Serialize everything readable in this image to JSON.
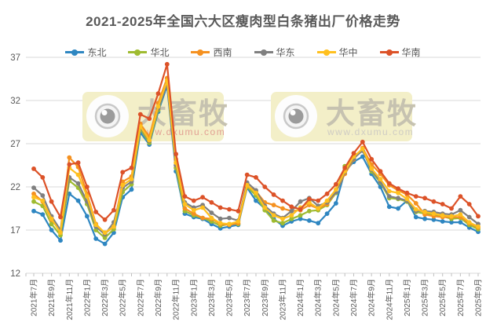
{
  "title": "2021-2025年全国六大区瘦肉型白条猪出厂价格走势",
  "watermark": {
    "brand": "大畜牧",
    "url": "www.dxumu.com"
  },
  "y_axis": {
    "ticks": [
      12,
      17,
      22,
      27,
      32,
      37
    ],
    "min": 12,
    "max": 37
  },
  "x_axis": {
    "labels": [
      "2021年7月",
      "2021年9月",
      "2021年11月",
      "2022年1月",
      "2022年3月",
      "2022年5月",
      "2022年7月",
      "2022年9月",
      "2022年11月",
      "2023年1月",
      "2023年3月",
      "2023年5月",
      "2023年7月",
      "2023年9月",
      "2023年11月",
      "2024年1月",
      "2024年3月",
      "2024年5月",
      "2024年7月",
      "2024年9月",
      "2024年11月",
      "2025年1月",
      "2025年3月",
      "2025年5月",
      "2025年7月",
      "2025年9月"
    ]
  },
  "chart_data": {
    "type": "line",
    "title": "2021-2025年全国六大区瘦肉型白条猪出厂价格走势",
    "xlabel": "",
    "ylabel": "",
    "ylim": [
      12,
      37
    ],
    "grid": "horizontal",
    "legend_position": "top",
    "months": [
      "2021-07",
      "2021-08",
      "2021-09",
      "2021-10",
      "2021-11",
      "2021-12",
      "2022-01",
      "2022-02",
      "2022-03",
      "2022-04",
      "2022-05",
      "2022-06",
      "2022-07",
      "2022-08",
      "2022-09",
      "2022-10",
      "2022-11",
      "2022-12",
      "2023-01",
      "2023-02",
      "2023-03",
      "2023-04",
      "2023-05",
      "2023-06",
      "2023-07",
      "2023-08",
      "2023-09",
      "2023-10",
      "2023-11",
      "2023-12",
      "2024-01",
      "2024-02",
      "2024-03",
      "2024-04",
      "2024-05",
      "2024-06",
      "2024-07",
      "2024-08",
      "2024-09",
      "2024-10",
      "2024-11",
      "2024-12",
      "2025-01",
      "2025-02",
      "2025-03",
      "2025-04",
      "2025-05",
      "2025-06",
      "2025-07",
      "2025-08",
      "2025-09"
    ],
    "series": [
      {
        "name": "东北",
        "key": "NE",
        "color": "#2E86C1",
        "values": [
          19.2,
          18.8,
          17.0,
          15.8,
          21.2,
          20.4,
          18.6,
          16.0,
          15.4,
          16.7,
          20.8,
          21.7,
          28.3,
          26.9,
          30.7,
          33.7,
          23.8,
          18.9,
          18.5,
          18.3,
          17.7,
          17.2,
          17.4,
          17.6,
          21.9,
          20.4,
          19.5,
          18.3,
          17.5,
          18.0,
          18.3,
          18.1,
          17.8,
          18.9,
          20.1,
          23.8,
          24.9,
          25.5,
          23.5,
          22.0,
          19.7,
          19.5,
          20.4,
          18.5,
          18.3,
          18.2,
          18.0,
          17.9,
          17.9,
          17.3,
          16.8
        ]
      },
      {
        "name": "华北",
        "key": "NC",
        "color": "#9FBB30",
        "values": [
          20.3,
          19.8,
          17.7,
          16.4,
          22.7,
          21.9,
          20.0,
          17.0,
          16.1,
          17.1,
          21.4,
          22.3,
          28.7,
          27.1,
          30.9,
          34.1,
          24.2,
          19.2,
          18.7,
          18.4,
          18.0,
          17.5,
          17.7,
          17.7,
          22.0,
          21.0,
          19.3,
          18.1,
          17.8,
          18.3,
          18.7,
          19.2,
          19.3,
          19.9,
          21.3,
          24.4,
          25.3,
          26.4,
          23.8,
          22.5,
          20.7,
          20.6,
          20.3,
          19.1,
          18.9,
          18.8,
          18.6,
          18.3,
          18.4,
          17.6,
          17.1
        ]
      },
      {
        "name": "西南",
        "key": "SW",
        "color": "#F59120",
        "values": [
          21.2,
          20.3,
          18.2,
          16.9,
          25.4,
          24.3,
          21.2,
          17.7,
          16.6,
          17.4,
          22.6,
          23.2,
          29.3,
          27.8,
          31.7,
          34.6,
          25.2,
          19.5,
          18.9,
          18.4,
          18.3,
          17.7,
          17.6,
          17.8,
          22.1,
          21.5,
          20.2,
          19.9,
          19.5,
          19.2,
          19.3,
          19.9,
          19.5,
          20.0,
          21.4,
          23.5,
          25.2,
          26.5,
          24.6,
          23.5,
          22.2,
          21.6,
          21.1,
          20.1,
          18.8,
          18.6,
          18.5,
          18.5,
          18.5,
          17.8,
          17.3
        ]
      },
      {
        "name": "华东",
        "key": "EC",
        "color": "#7F7F7F",
        "values": [
          21.9,
          21.0,
          18.6,
          17.0,
          23.1,
          22.4,
          20.3,
          17.4,
          16.5,
          17.9,
          21.9,
          22.6,
          28.9,
          27.3,
          31.1,
          33.9,
          24.5,
          20.2,
          19.6,
          19.9,
          19.0,
          18.3,
          18.4,
          18.1,
          22.5,
          21.6,
          19.8,
          18.9,
          18.4,
          19.2,
          20.3,
          20.7,
          19.8,
          20.2,
          21.4,
          23.7,
          25.3,
          26.2,
          24.0,
          22.6,
          20.9,
          20.7,
          20.4,
          19.2,
          19.2,
          19.1,
          18.9,
          18.8,
          19.3,
          18.5,
          17.7
        ]
      },
      {
        "name": "华中",
        "key": "CC",
        "color": "#FFC01E",
        "values": [
          20.8,
          20.4,
          18.3,
          16.7,
          24.2,
          23.4,
          20.9,
          17.6,
          16.7,
          17.4,
          22.2,
          22.9,
          29.0,
          27.4,
          31.3,
          34.3,
          24.8,
          20.0,
          19.3,
          19.6,
          18.4,
          17.8,
          17.7,
          18.0,
          22.2,
          21.3,
          19.6,
          18.7,
          18.3,
          18.7,
          19.6,
          20.2,
          19.5,
          20.4,
          21.7,
          23.8,
          25.5,
          26.4,
          24.1,
          22.9,
          21.5,
          21.3,
          20.6,
          19.4,
          19.1,
          18.9,
          18.7,
          18.6,
          18.8,
          17.9,
          17.4
        ]
      },
      {
        "name": "华南",
        "key": "SC",
        "color": "#DC5228",
        "values": [
          24.1,
          23.1,
          20.3,
          18.5,
          24.6,
          24.8,
          22.0,
          19.1,
          18.2,
          19.3,
          23.7,
          24.2,
          30.4,
          29.9,
          32.8,
          36.2,
          25.8,
          20.9,
          20.4,
          20.8,
          20.2,
          19.6,
          19.4,
          19.2,
          23.4,
          23.1,
          22.0,
          21.1,
          20.4,
          19.7,
          19.4,
          20.6,
          20.4,
          21.2,
          22.3,
          24.2,
          25.9,
          27.2,
          25.2,
          23.8,
          22.4,
          21.8,
          21.3,
          20.9,
          20.7,
          20.3,
          20.0,
          19.5,
          20.9,
          20.0,
          18.6
        ]
      }
    ]
  },
  "colors": {
    "title_text": "#595959",
    "axis_text": "#595959",
    "gridline": "#d9d9d9",
    "tick": "#bfbfbf",
    "watermark_box": "#f3efc8",
    "watermark_text": "#c6c2b0",
    "watermark_url_left": "#e2a093",
    "watermark_url_right": "#cfccc4"
  }
}
